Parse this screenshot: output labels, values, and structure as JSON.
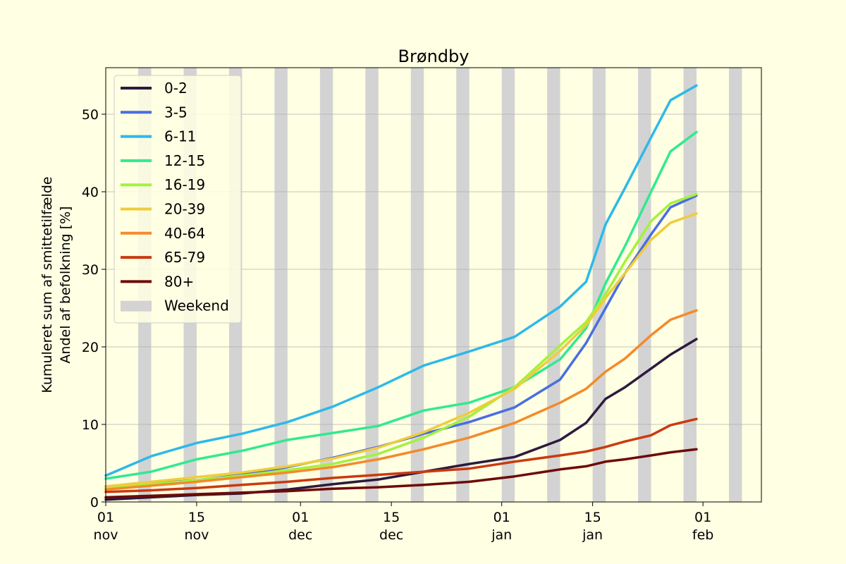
{
  "chart_data": {
    "type": "line",
    "title": "Brøndby",
    "ylabel_line1": "Kumuleret sum af smittetilfælde",
    "ylabel_line2": "Andel af befolkning [%]",
    "xlabel": "",
    "ylim": [
      0,
      56
    ],
    "yticks": [
      0,
      10,
      20,
      30,
      40,
      50
    ],
    "grid": "horizontal",
    "legend_position": "top-left",
    "x_start": "2021-11-01",
    "x_end": "2022-02-10",
    "xticks": [
      {
        "date": "2021-11-01",
        "day": "01",
        "month": "nov"
      },
      {
        "date": "2021-11-15",
        "day": "15",
        "month": "nov"
      },
      {
        "date": "2021-12-01",
        "day": "01",
        "month": "dec"
      },
      {
        "date": "2021-12-15",
        "day": "15",
        "month": "dec"
      },
      {
        "date": "2022-01-01",
        "day": "01",
        "month": "jan"
      },
      {
        "date": "2022-01-15",
        "day": "15",
        "month": "jan"
      },
      {
        "date": "2022-02-01",
        "day": "01",
        "month": "feb"
      }
    ],
    "weekends": [
      "2021-11-06",
      "2021-11-13",
      "2021-11-20",
      "2021-11-27",
      "2021-12-04",
      "2021-12-11",
      "2021-12-18",
      "2021-12-25",
      "2022-01-01",
      "2022-01-08",
      "2022-01-15",
      "2022-01-22",
      "2022-01-29",
      "2022-02-05"
    ],
    "weekend_label": "Weekend",
    "weekend_color": "#d3d3d3",
    "x_dates": [
      "2021-11-01",
      "2021-11-08",
      "2021-11-15",
      "2021-11-22",
      "2021-11-29",
      "2021-12-06",
      "2021-12-13",
      "2021-12-20",
      "2021-12-27",
      "2022-01-03",
      "2022-01-10",
      "2022-01-14",
      "2022-01-17",
      "2022-01-20",
      "2022-01-24",
      "2022-01-27",
      "2022-01-31"
    ],
    "series": [
      {
        "name": "0-2",
        "color": "#2d1a3e",
        "values": [
          0.3,
          0.6,
          0.9,
          1.1,
          1.6,
          2.3,
          2.9,
          3.9,
          4.9,
          5.8,
          8.0,
          10.2,
          13.3,
          14.8,
          17.2,
          19.0,
          21.0
        ]
      },
      {
        "name": "3-5",
        "color": "#4a6ee0",
        "values": [
          2.0,
          2.4,
          2.8,
          3.5,
          4.5,
          5.7,
          7.1,
          8.8,
          10.3,
          12.2,
          15.8,
          20.5,
          25.0,
          29.5,
          34.5,
          38.0,
          39.5
        ]
      },
      {
        "name": "6-11",
        "color": "#2db9e8",
        "values": [
          3.4,
          5.9,
          7.6,
          8.8,
          10.3,
          12.3,
          14.8,
          17.6,
          19.4,
          21.3,
          25.2,
          28.4,
          35.8,
          40.5,
          47.0,
          51.8,
          53.7
        ]
      },
      {
        "name": "12-15",
        "color": "#33e98f",
        "values": [
          3.0,
          3.9,
          5.5,
          6.6,
          8.0,
          8.9,
          9.8,
          11.8,
          12.8,
          14.8,
          18.4,
          22.4,
          28.2,
          33.0,
          40.0,
          45.2,
          47.7
        ]
      },
      {
        "name": "16-19",
        "color": "#a4f13d",
        "values": [
          1.8,
          2.3,
          2.8,
          3.4,
          4.1,
          4.9,
          6.2,
          8.3,
          11.0,
          14.8,
          20.2,
          23.2,
          26.8,
          31.0,
          36.2,
          38.5,
          39.7
        ]
      },
      {
        "name": "20-39",
        "color": "#f0cc3b",
        "values": [
          2.0,
          2.6,
          3.2,
          3.8,
          4.6,
          5.6,
          7.0,
          9.0,
          11.5,
          14.6,
          19.5,
          22.8,
          26.3,
          29.5,
          33.8,
          36.0,
          37.2
        ]
      },
      {
        "name": "40-64",
        "color": "#f48a2a",
        "values": [
          1.6,
          2.1,
          2.6,
          3.2,
          3.8,
          4.5,
          5.5,
          6.8,
          8.3,
          10.2,
          12.8,
          14.6,
          16.8,
          18.5,
          21.5,
          23.5,
          24.7
        ]
      },
      {
        "name": "65-79",
        "color": "#c93a10",
        "values": [
          1.3,
          1.5,
          1.8,
          2.2,
          2.6,
          3.1,
          3.5,
          3.9,
          4.3,
          5.2,
          6.0,
          6.5,
          7.1,
          7.8,
          8.6,
          9.9,
          10.7
        ]
      },
      {
        "name": "80+",
        "color": "#6e0a06",
        "values": [
          0.6,
          0.8,
          1.0,
          1.2,
          1.4,
          1.7,
          1.9,
          2.2,
          2.6,
          3.3,
          4.2,
          4.6,
          5.2,
          5.5,
          6.0,
          6.4,
          6.8
        ]
      }
    ]
  }
}
